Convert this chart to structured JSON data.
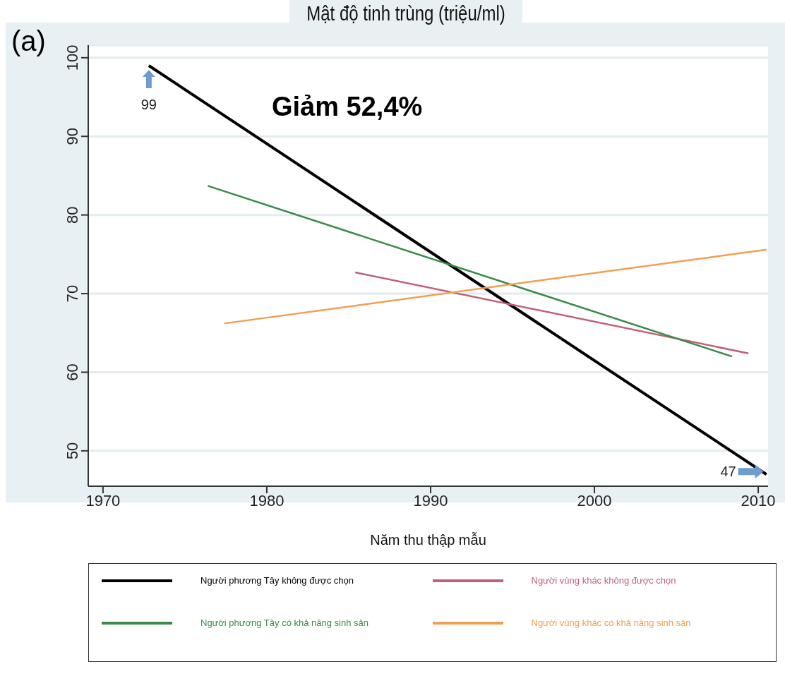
{
  "chart_data": {
    "type": "line",
    "title": "Mật độ tinh trùng (triệu/ml)",
    "xlabel": "Năm thu thập mẫu",
    "series": [
      {
        "name": "Người phương Tây không được chọn",
        "color": "#000000",
        "x": [
          1972.8,
          2010.5
        ],
        "values": [
          99,
          47
        ]
      },
      {
        "name": "Người vùng khác  không được chọn",
        "color": "#c0607a",
        "x": [
          1985.4,
          2009.4
        ],
        "values": [
          72.7,
          62.4
        ]
      },
      {
        "name": "Người phương Tây có khả năng sinh sản",
        "color": "#3a8a4a",
        "x": [
          1976.4,
          2008.4
        ],
        "values": [
          83.7,
          62.0
        ]
      },
      {
        "name": "Người vùng khác có khả năng sinh sản",
        "color": "#f0a050",
        "x": [
          1977.4,
          2010.5
        ],
        "values": [
          66.2,
          75.6
        ]
      }
    ],
    "xlim": [
      1969.1,
      2010.6
    ],
    "xticks": [
      1970,
      1980,
      1990,
      2000,
      2010
    ],
    "ylim": [
      45.5,
      101.6
    ],
    "yticks": [
      50,
      60,
      70,
      80,
      90,
      100
    ],
    "grid": "y",
    "legend": "bottom",
    "marker": "none",
    "line_style": "solid",
    "annotations": [
      "(a)",
      "Giảm 52,4%",
      {
        "text": "99",
        "x": 1972.8,
        "y": 99
      },
      {
        "text": "47",
        "x": 2010.5,
        "y": 47
      }
    ]
  }
}
